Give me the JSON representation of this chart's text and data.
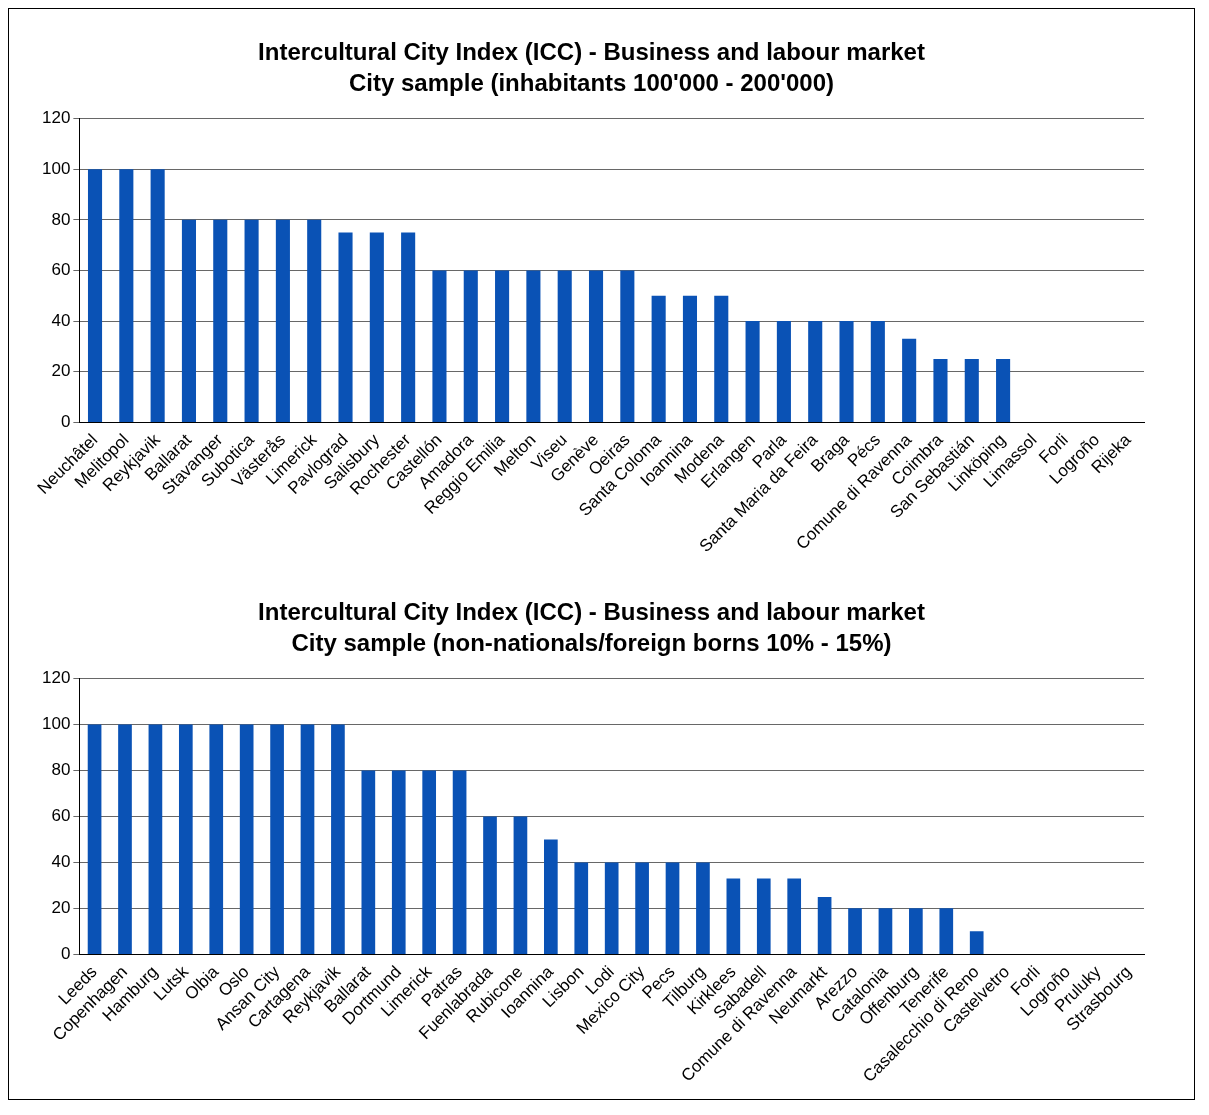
{
  "chart_data": [
    {
      "type": "bar",
      "title": "Intercultural City Index (ICC) - Business and labour market",
      "subtitle": "City sample (inhabitants 100'000 - 200'000)",
      "categories": [
        "Neuchâtel",
        "Melitopol",
        "Reykjavik",
        "Ballarat",
        "Stavanger",
        "Subotica",
        "Västerås",
        "Limerick",
        "Pavlograd",
        "Salisbury",
        "Rochester",
        "Castellón",
        "Amadora",
        "Reggio Emilia",
        "Melton",
        "Viseu",
        "Genève",
        "Oeiras",
        "Santa Coloma",
        "Ioannina",
        "Modena",
        "Erlangen",
        "Parla",
        "Santa Maria da Feira",
        "Braga",
        "Pécs",
        "Comune di Ravenna",
        "Coimbra",
        "San Sebastián",
        "Linköping",
        "Limassol",
        "Forli",
        "Logroño",
        "Rijeka"
      ],
      "values": [
        100,
        100,
        100,
        80,
        80,
        80,
        80,
        80,
        75,
        75,
        75,
        60,
        60,
        60,
        60,
        60,
        60,
        60,
        50,
        50,
        50,
        40,
        40,
        40,
        40,
        40,
        33,
        25,
        25,
        25,
        0,
        0,
        0,
        0
      ],
      "color": "#0a52b5",
      "ylim": [
        0,
        120
      ],
      "yticks": [
        0,
        20,
        40,
        60,
        80,
        100,
        120
      ],
      "grid": "y",
      "legend": false
    },
    {
      "type": "bar",
      "title": "Intercultural City Index (ICC) - Business and labour market",
      "subtitle": "City sample (non-nationals/foreign borns 10% - 15%)",
      "categories": [
        "Leeds",
        "Copenhagen",
        "Hamburg",
        "Lutsk",
        "Olbia",
        "Oslo",
        "Ansan City",
        "Cartagena",
        "Reykjavik",
        "Ballarat",
        "Dortmund",
        "Limerick",
        "Patras",
        "Fuenlabrada",
        "Rubicone",
        "Ioannina",
        "Lisbon",
        "Lodi",
        "Mexico City",
        "Pecs",
        "Tilburg",
        "Kirklees",
        "Sabadell",
        "Comune di Ravenna",
        "Neumarkt",
        "Arezzo",
        "Catalonia",
        "Offenburg",
        "Tenerife",
        "Casalecchio di Reno",
        "Castelvetro",
        "Forli",
        "Logroño",
        "Pruluky",
        "Strasbourg"
      ],
      "values": [
        100,
        100,
        100,
        100,
        100,
        100,
        100,
        100,
        100,
        80,
        80,
        80,
        80,
        60,
        60,
        50,
        40,
        40,
        40,
        40,
        40,
        33,
        33,
        33,
        25,
        20,
        20,
        20,
        20,
        10,
        0,
        0,
        0,
        0,
        0
      ],
      "color": "#0a52b5",
      "ylim": [
        0,
        120
      ],
      "yticks": [
        0,
        20,
        40,
        60,
        80,
        100,
        120
      ],
      "grid": "y",
      "legend": false
    }
  ]
}
